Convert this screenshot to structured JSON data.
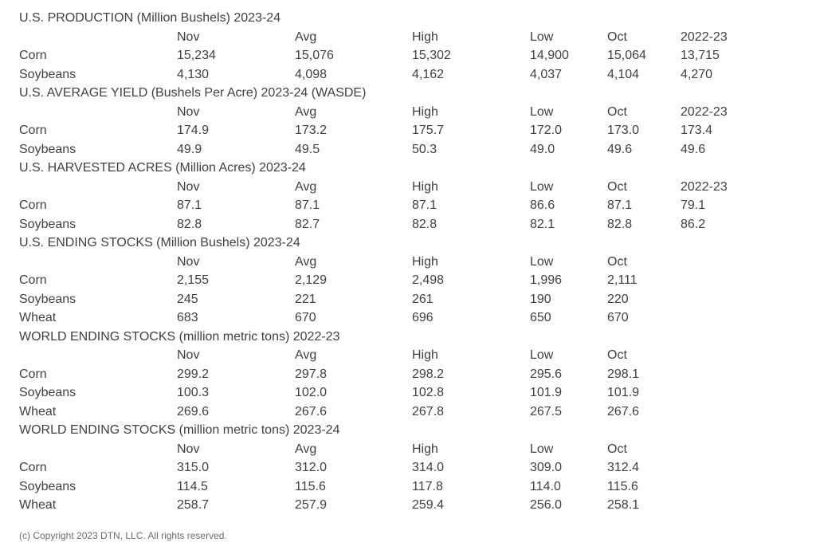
{
  "colors": {
    "text": "#414042",
    "footer_text": "#6d6d6d",
    "background": "#ffffff"
  },
  "sections": [
    {
      "title": "U.S. PRODUCTION (Million Bushels) 2023-24",
      "columns": [
        "Nov",
        "Avg",
        "High",
        "Low",
        "Oct",
        "2022-23"
      ],
      "rows": [
        {
          "label": "Corn",
          "values": [
            "15,234",
            "15,076",
            "15,302",
            "14,900",
            "15,064",
            "13,715"
          ]
        },
        {
          "label": "Soybeans",
          "values": [
            "4,130",
            "4,098",
            "4,162",
            "4,037",
            "4,104",
            "4,270"
          ]
        }
      ]
    },
    {
      "title": "U.S. AVERAGE YIELD (Bushels Per Acre) 2023-24 (WASDE)",
      "columns": [
        "Nov",
        "Avg",
        "High",
        "Low",
        "Oct",
        "2022-23"
      ],
      "rows": [
        {
          "label": "Corn",
          "values": [
            "174.9",
            "173.2",
            "175.7",
            "172.0",
            "173.0",
            "173.4"
          ]
        },
        {
          "label": "Soybeans",
          "values": [
            "49.9",
            "49.5",
            "50.3",
            "49.0",
            "49.6",
            "49.6"
          ]
        }
      ]
    },
    {
      "title": "U.S. HARVESTED ACRES (Million Acres) 2023-24",
      "columns": [
        "Nov",
        "Avg",
        "High",
        "Low",
        "Oct",
        "2022-23"
      ],
      "rows": [
        {
          "label": "Corn",
          "values": [
            "87.1",
            "87.1",
            "87.1",
            "86.6",
            "87.1",
            "79.1"
          ]
        },
        {
          "label": "Soybeans",
          "values": [
            "82.8",
            "82.7",
            "82.8",
            "82.1",
            "82.8",
            "86.2"
          ]
        }
      ]
    },
    {
      "title": "U.S. ENDING STOCKS (Million Bushels) 2023-24",
      "columns": [
        "Nov",
        "Avg",
        "High",
        "Low",
        "Oct"
      ],
      "rows": [
        {
          "label": "Corn",
          "values": [
            "2,155",
            "2,129",
            "2,498",
            "1,996",
            "2,111"
          ]
        },
        {
          "label": "Soybeans",
          "values": [
            "245",
            "221",
            "261",
            "190",
            "220"
          ]
        },
        {
          "label": "Wheat",
          "values": [
            "683",
            "670",
            "696",
            "650",
            "670"
          ]
        }
      ]
    },
    {
      "title": "WORLD ENDING STOCKS (million metric tons) 2022-23",
      "columns": [
        "Nov",
        "Avg",
        "High",
        "Low",
        "Oct"
      ],
      "rows": [
        {
          "label": "Corn",
          "values": [
            "299.2",
            "297.8",
            "298.2",
            "295.6",
            "298.1"
          ]
        },
        {
          "label": "Soybeans",
          "values": [
            "100.3",
            "102.0",
            "102.8",
            "101.9",
            "101.9"
          ]
        },
        {
          "label": "Wheat",
          "values": [
            "269.6",
            "267.6",
            "267.8",
            "267.5",
            "267.6"
          ]
        }
      ]
    },
    {
      "title": "WORLD ENDING STOCKS (million metric tons) 2023-24",
      "columns": [
        "Nov",
        "Avg",
        "High",
        "Low",
        "Oct"
      ],
      "rows": [
        {
          "label": "Corn",
          "values": [
            "315.0",
            "312.0",
            "314.0",
            "309.0",
            "312.4"
          ]
        },
        {
          "label": "Soybeans",
          "values": [
            "114.5",
            "115.6",
            "117.8",
            "114.0",
            "115.6"
          ]
        },
        {
          "label": "Wheat",
          "values": [
            "258.7",
            "257.9",
            "259.4",
            "256.0",
            "258.1"
          ]
        }
      ]
    }
  ],
  "footer": "(c) Copyright 2023 DTN, LLC. All rights reserved."
}
